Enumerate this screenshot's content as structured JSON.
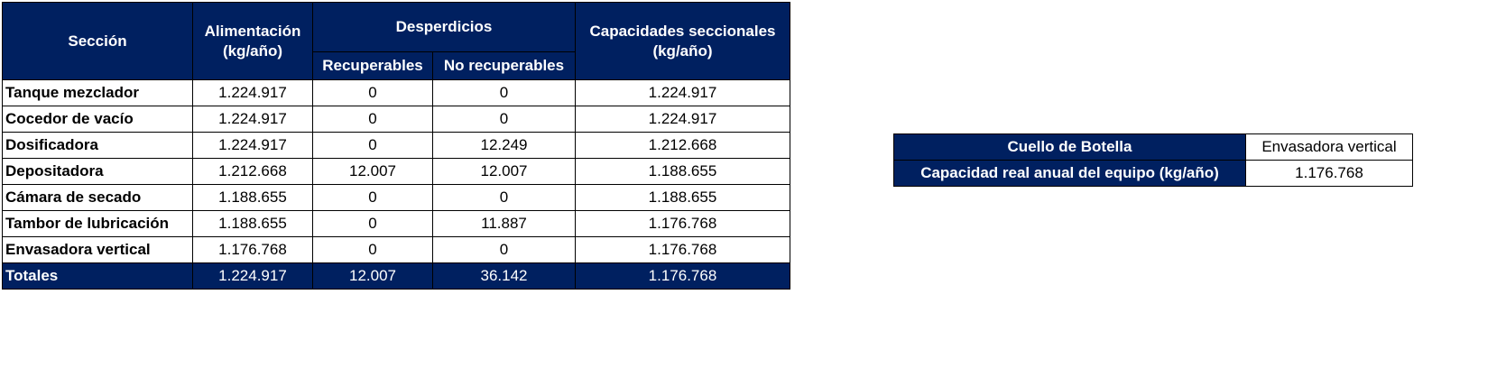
{
  "main_table": {
    "headers": {
      "section": "Sección",
      "feed": "Alimentación (kg/año)",
      "waste": "Desperdicios",
      "recoverable": "Recuperables",
      "non_recoverable": "No recuperables",
      "capacity": "Capacidades seccionales (kg/año)"
    },
    "rows": [
      [
        "Tanque mezclador",
        "1.224.917",
        "0",
        "0",
        "1.224.917"
      ],
      [
        "Cocedor de vacío",
        "1.224.917",
        "0",
        "0",
        "1.224.917"
      ],
      [
        "Dosificadora",
        "1.224.917",
        "0",
        "12.249",
        "1.212.668"
      ],
      [
        "Depositadora",
        "1.212.668",
        "12.007",
        "12.007",
        "1.188.655"
      ],
      [
        "Cámara de secado",
        "1.188.655",
        "0",
        "0",
        "1.188.655"
      ],
      [
        "Tambor de lubricación",
        "1.188.655",
        "0",
        "11.887",
        "1.176.768"
      ],
      [
        "Envasadora vertical",
        "1.176.768",
        "0",
        "0",
        "1.176.768"
      ]
    ],
    "totals": [
      "Totales",
      "1.224.917",
      "12.007",
      "36.142",
      "1.176.768"
    ]
  },
  "bottleneck_table": {
    "label": "Cuello de Botella",
    "equipment": "Envasadora vertical",
    "capacity_label": "Capacidad real anual del equipo (kg/año)",
    "capacity": "1.176.768"
  }
}
